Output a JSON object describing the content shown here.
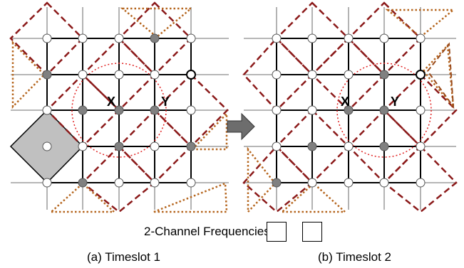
{
  "panel_a": {
    "label_x": "X",
    "label_y": "Y",
    "caption": "(a) Timeslot 1"
  },
  "panel_b": {
    "label_x": "X",
    "label_y": "Y",
    "caption": "(b) Timeslot 2"
  },
  "legend": {
    "text": "2-Channel Frequencies",
    "boxes": 2
  },
  "colors": {
    "grid": "#8a8a8a",
    "grid_bold": "#000000",
    "dashed_diamond": "#8b1a1a",
    "dotted_triangle": "#b5651d",
    "dotted_circle": "#e02020",
    "node_gray": "#808080",
    "node_white": "#ffffff",
    "fill_gray": "#c0c0c0",
    "arrow": "#6d6d6d"
  }
}
